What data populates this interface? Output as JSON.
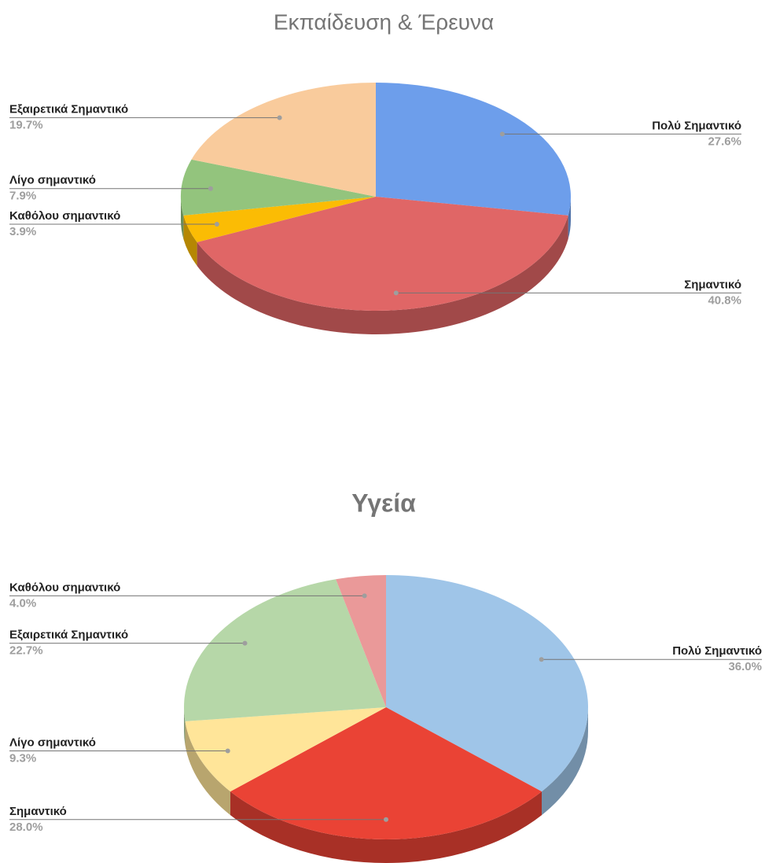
{
  "chart_data": [
    {
      "type": "pie",
      "title": "Εκπαίδευση & Έρευνα",
      "categories": [
        "Πολύ Σημαντικό",
        "Σημαντικό",
        "Καθόλου σημαντικό",
        "Λίγο σημαντικό",
        "Εξαιρετικά Σημαντικό"
      ],
      "values": [
        27.6,
        40.8,
        3.9,
        7.9,
        19.7
      ],
      "value_labels": [
        "27.6%",
        "40.8%",
        "3.9%",
        "7.9%",
        "19.7%"
      ],
      "colors": [
        "#6d9eeb",
        "#e06666",
        "#fbbc04",
        "#93c47d",
        "#f9cb9c"
      ]
    },
    {
      "type": "pie",
      "title": "Υγεία",
      "categories": [
        "Πολύ Σημαντικό",
        "Σημαντικό",
        "Λίγο σημαντικό",
        "Εξαιρετικά Σημαντικό",
        "Καθόλου σημαντικό"
      ],
      "values": [
        36.0,
        28.0,
        9.3,
        22.7,
        4.0
      ],
      "value_labels": [
        "36.0%",
        "28.0%",
        "9.3%",
        "22.7%",
        "4.0%"
      ],
      "colors": [
        "#9fc5e8",
        "#ea4335",
        "#ffe599",
        "#b6d7a8",
        "#ea9999"
      ]
    }
  ]
}
